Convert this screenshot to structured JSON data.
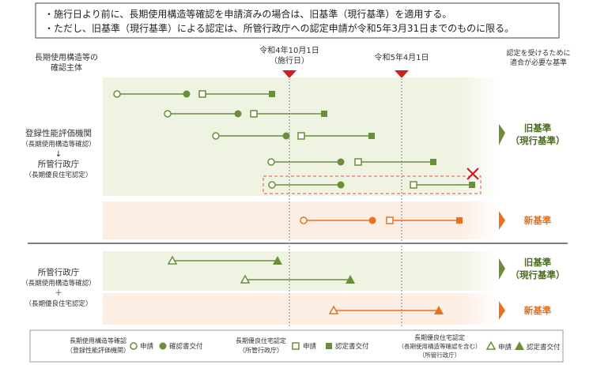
{
  "notes": [
    "・施行日より前に、長期使用構造等確認を申請済みの場合は、旧基準（現行基準）を適用する。",
    "・ただし、旧基準（現行基準）による認定は、所管行政庁への認定申請が令和5年3月31日までのものに限る。"
  ],
  "header": {
    "left_line1": "長期使用構造等の",
    "left_line2": "確認主体",
    "date1_line1": "令和4年10月1日",
    "date1_line2": "（施行日）",
    "date2": "令和5年4月1日",
    "right_line1": "認定を受けるために",
    "right_line2": "適合が必要な基準"
  },
  "section1": {
    "label1": "登録性能評価機関",
    "label2": "（長期使用構造等確認）",
    "arrow": "↓",
    "label3": "所管行政庁",
    "label4": "（長期優良住宅認定）",
    "old_std_1": "旧基準",
    "old_std_2": "（現行基準）",
    "new_std": "新基準"
  },
  "section2": {
    "label1": "所管行政庁",
    "label2": "（長期使用構造等確認）",
    "plus": "＋",
    "label3": "（長期優良住宅認定）",
    "old_std_1": "旧基準",
    "old_std_2": "（現行基準）",
    "new_std": "新基準"
  },
  "legend": {
    "g1_line1": "長期使用構造等確認",
    "g1_line2": "（登録性能評価機関）",
    "g1_apply": "申請",
    "g1_issue": "確認書交付",
    "g2_line1": "長期優良住宅認定",
    "g2_line2": "（所管行政庁）",
    "g2_apply": "申請",
    "g2_issue": "認定書交付",
    "g3_line1": "長期優良住宅認定",
    "g3_line2": "（長期使用構造等確認を含む）",
    "g3_line3": "（所管行政庁）",
    "g3_apply": "申請",
    "g3_issue": "認定書交付"
  },
  "colors": {
    "green": "#6b8e3a",
    "orange": "#e8701e",
    "green_bg": "#eef3e2",
    "orange_bg": "#fdeee4",
    "red": "#cc1f1f"
  }
}
